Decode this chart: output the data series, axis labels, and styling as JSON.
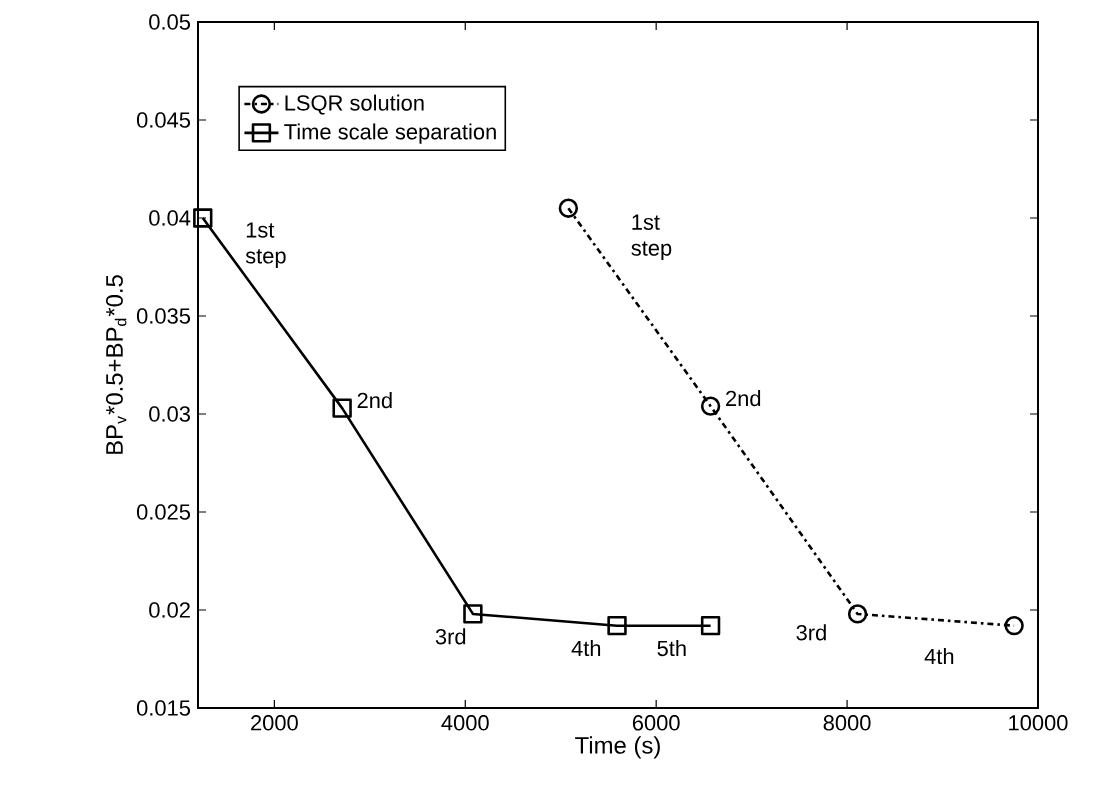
{
  "chart_data": {
    "type": "line",
    "xlabel": "Time (s)",
    "ylabel": "BP$_{v}$*0.5+BP$_{d}$*0.5",
    "xlim": [
      1200,
      10000
    ],
    "ylim": [
      0.015,
      0.05
    ],
    "xticks": [
      2000,
      4000,
      6000,
      8000,
      10000
    ],
    "yticks": [
      0.015,
      0.02,
      0.025,
      0.03,
      0.035,
      0.04,
      0.045,
      0.05
    ],
    "grid": false,
    "legend": "top left",
    "series": [
      {
        "name": "LSQR solution",
        "color": "#000000",
        "marker": "circle",
        "line_style": "dashdot",
        "x": [
          5080,
          6570,
          8110,
          9750
        ],
        "values": [
          0.0405,
          0.0304,
          0.0198,
          0.0192
        ]
      },
      {
        "name": "Time scale separation",
        "color": "#000000",
        "marker": "square",
        "line_style": "solid",
        "x": [
          1250,
          2710,
          4080,
          5590,
          6570
        ],
        "values": [
          0.04,
          0.0303,
          0.0198,
          0.0192,
          0.0192
        ]
      }
    ],
    "annotations": [
      {
        "text": "1st step",
        "x": 1250,
        "y": 0.04
      },
      {
        "text": "2nd",
        "x": 2710,
        "y": 0.0303
      },
      {
        "text": "3rd",
        "x": 4080,
        "y": 0.0198
      },
      {
        "text": "4th",
        "x": 5590,
        "y": 0.0192
      },
      {
        "text": "5th",
        "x": 6570,
        "y": 0.0192
      },
      {
        "text": "1st step",
        "x": 5080,
        "y": 0.0405
      },
      {
        "text": "2nd",
        "x": 6570,
        "y": 0.0304
      },
      {
        "text": "3rd",
        "x": 8110,
        "y": 0.0198
      },
      {
        "text": "4th",
        "x": 9750,
        "y": 0.0192
      }
    ]
  }
}
